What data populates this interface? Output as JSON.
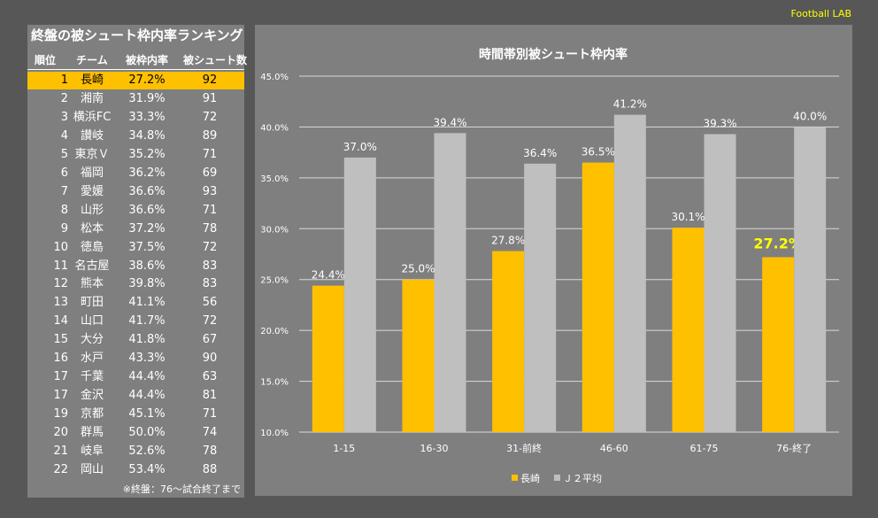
{
  "brand": "Football LAB",
  "ranking": {
    "title": "終盤の被シュート枠内率ランキング",
    "headers": [
      "順位",
      "チーム",
      "被枠内率",
      "被シュート数"
    ],
    "rows": [
      [
        "1",
        "長崎",
        "27.2%",
        "92"
      ],
      [
        "2",
        "湘南",
        "31.9%",
        "91"
      ],
      [
        "3",
        "横浜FC",
        "33.3%",
        "72"
      ],
      [
        "4",
        "讃岐",
        "34.8%",
        "89"
      ],
      [
        "5",
        "東京Ｖ",
        "35.2%",
        "71"
      ],
      [
        "6",
        "福岡",
        "36.2%",
        "69"
      ],
      [
        "7",
        "愛媛",
        "36.6%",
        "93"
      ],
      [
        "8",
        "山形",
        "36.6%",
        "71"
      ],
      [
        "9",
        "松本",
        "37.2%",
        "78"
      ],
      [
        "10",
        "徳島",
        "37.5%",
        "72"
      ],
      [
        "11",
        "名古屋",
        "38.6%",
        "83"
      ],
      [
        "12",
        "熊本",
        "39.8%",
        "83"
      ],
      [
        "13",
        "町田",
        "41.1%",
        "56"
      ],
      [
        "14",
        "山口",
        "41.7%",
        "72"
      ],
      [
        "15",
        "大分",
        "41.8%",
        "67"
      ],
      [
        "16",
        "水戸",
        "43.3%",
        "90"
      ],
      [
        "17",
        "千葉",
        "44.4%",
        "63"
      ],
      [
        "17",
        "金沢",
        "44.4%",
        "81"
      ],
      [
        "19",
        "京都",
        "45.1%",
        "71"
      ],
      [
        "20",
        "群馬",
        "50.0%",
        "74"
      ],
      [
        "21",
        "岐阜",
        "52.6%",
        "78"
      ],
      [
        "22",
        "岡山",
        "53.4%",
        "88"
      ]
    ],
    "note": "※終盤：76～試合終了まで"
  },
  "chart_data": {
    "type": "bar",
    "title": "時間帯別被シュート枠内率",
    "categories": [
      "1-15",
      "16-30",
      "31-前終",
      "46-60",
      "61-75",
      "76-終了"
    ],
    "series": [
      {
        "name": "長崎",
        "color": "#ffc000",
        "values": [
          24.4,
          25.0,
          27.8,
          36.5,
          30.1,
          27.2
        ],
        "labels": [
          "24.4%",
          "25.0%",
          "27.8%",
          "36.5%",
          "30.1%",
          "27.2%"
        ]
      },
      {
        "name": "Ｊ２平均",
        "color": "#bfbfbf",
        "values": [
          37.0,
          39.4,
          36.4,
          41.2,
          39.3,
          40.0
        ],
        "labels": [
          "37.0%",
          "39.4%",
          "36.4%",
          "41.2%",
          "39.3%",
          "40.0%"
        ]
      }
    ],
    "ylim": [
      10,
      45
    ],
    "yticks": [
      "10.0%",
      "15.0%",
      "20.0%",
      "25.0%",
      "30.0%",
      "35.0%",
      "40.0%",
      "45.0%"
    ],
    "legend": "bottom",
    "grid": true
  }
}
